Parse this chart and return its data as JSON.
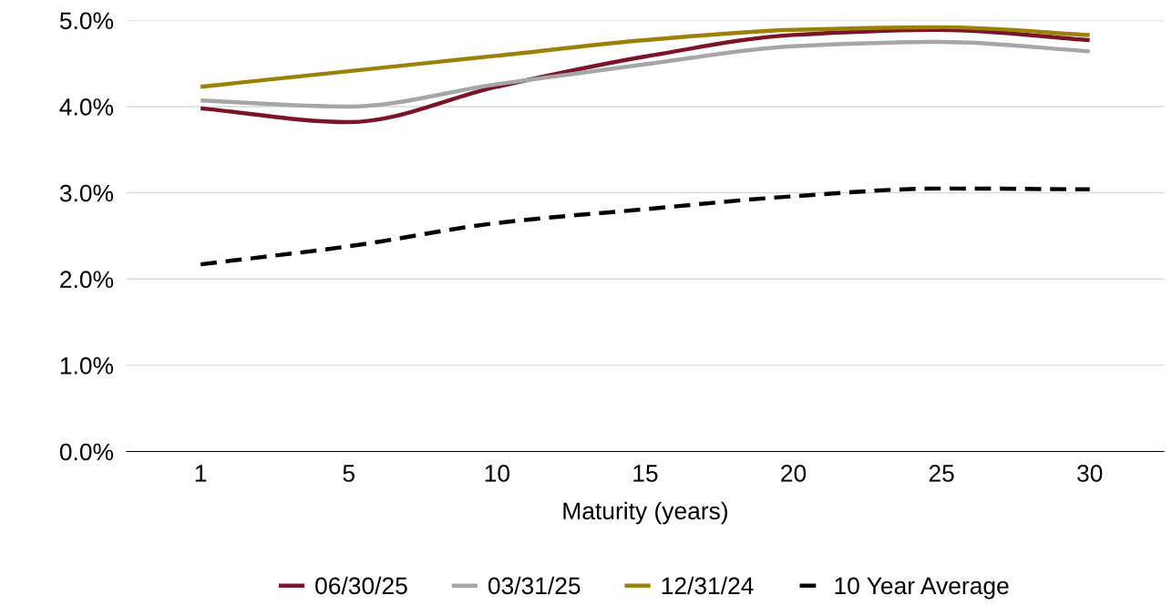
{
  "chart_data": {
    "type": "line",
    "xlabel": "Maturity (years)",
    "categories": [
      "1",
      "5",
      "10",
      "15",
      "20",
      "25",
      "30"
    ],
    "series": [
      {
        "name": "06/30/25",
        "color": "#7b1426",
        "values": [
          3.98,
          3.82,
          4.23,
          4.58,
          4.83,
          4.89,
          4.77
        ]
      },
      {
        "name": "03/31/25",
        "color": "#a6a6a6",
        "values": [
          4.07,
          4.0,
          4.26,
          4.49,
          4.7,
          4.75,
          4.64
        ]
      },
      {
        "name": "12/31/24",
        "color": "#9c8109",
        "values": [
          4.23,
          4.41,
          4.59,
          4.77,
          4.89,
          4.92,
          4.83
        ]
      },
      {
        "name": "10 Year Average",
        "color": "#000000",
        "line_style": "dashed",
        "values": [
          2.17,
          2.38,
          2.65,
          2.81,
          2.96,
          3.05,
          3.04
        ]
      }
    ],
    "ylim": [
      0,
      5
    ],
    "yticks": [
      {
        "value": 0,
        "label": "0.0%"
      },
      {
        "value": 1,
        "label": "1.0%"
      },
      {
        "value": 2,
        "label": "2.0%"
      },
      {
        "value": 3,
        "label": "3.0%"
      },
      {
        "value": 4,
        "label": "4.0%"
      },
      {
        "value": 5,
        "label": "5.0%"
      }
    ],
    "grid": "y",
    "legend": "bottom",
    "marker": "none",
    "line_style": "solid"
  }
}
